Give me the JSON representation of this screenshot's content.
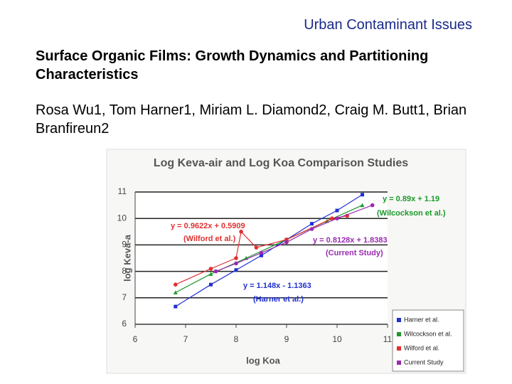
{
  "header": {
    "section": "Urban Contaminant Issues"
  },
  "title": "Surface Organic Films: Growth Dynamics and Partitioning Characteristics",
  "authors": "Rosa Wu1, Tom Harner1, Miriam L. Diamond2, Craig M. Butt1, Brian Branfireun2",
  "chart_data": {
    "type": "scatter",
    "title": "Log Keva-air and Log Koa Comparison Studies",
    "x_label": "log Koa",
    "y_label": "log Keva-a",
    "xlim": [
      6,
      11
    ],
    "xticks": [
      6,
      7,
      8,
      9,
      10,
      11
    ],
    "ylim": [
      6,
      11
    ],
    "yticks": [
      6,
      7,
      8,
      9,
      10,
      11
    ],
    "grid": true,
    "series": [
      {
        "name": "Harner et al.",
        "color": "#1f2fd0",
        "marker": "square",
        "x": [
          6.8,
          7.5,
          8,
          8.5,
          9,
          9.5,
          10,
          10.5
        ],
        "values": [
          6.67,
          7.5,
          8.05,
          8.6,
          9.2,
          9.8,
          10.3,
          10.9
        ]
      },
      {
        "name": "Wilcockson et al.",
        "color": "#1a9a2a",
        "marker": "triangle",
        "x": [
          6.8,
          7.5,
          8.2,
          9,
          9.8,
          10.5
        ],
        "values": [
          7.2,
          7.9,
          8.5,
          9.2,
          9.9,
          10.5
        ]
      },
      {
        "name": "Wilford et al.",
        "color": "#e03030",
        "marker": "circle",
        "x": [
          6.8,
          7.5,
          8,
          8.1,
          8.4,
          9,
          9.9,
          10.2
        ],
        "values": [
          7.5,
          8.1,
          8.5,
          9.5,
          8.9,
          9.2,
          10.0,
          10.1
        ]
      },
      {
        "name": "Current Study",
        "color": "#9a2ab0",
        "marker": "circle",
        "x": [
          7.6,
          8,
          8.5,
          9,
          9.5,
          10,
          10.7
        ],
        "values": [
          8.0,
          8.3,
          8.7,
          9.1,
          9.6,
          10.0,
          10.5
        ]
      }
    ],
    "annotations": [
      "y = 0.89x + 1.19",
      "(Wilcockson et al.)",
      "y = 0.9622x + 0.5909",
      "(Wilford et al.)",
      "y = 0.8128x + 1.8383",
      "(Current Study)",
      "y = 1.148x - 1.1363",
      "(Harner et al.)"
    ],
    "legend": "lower right"
  }
}
